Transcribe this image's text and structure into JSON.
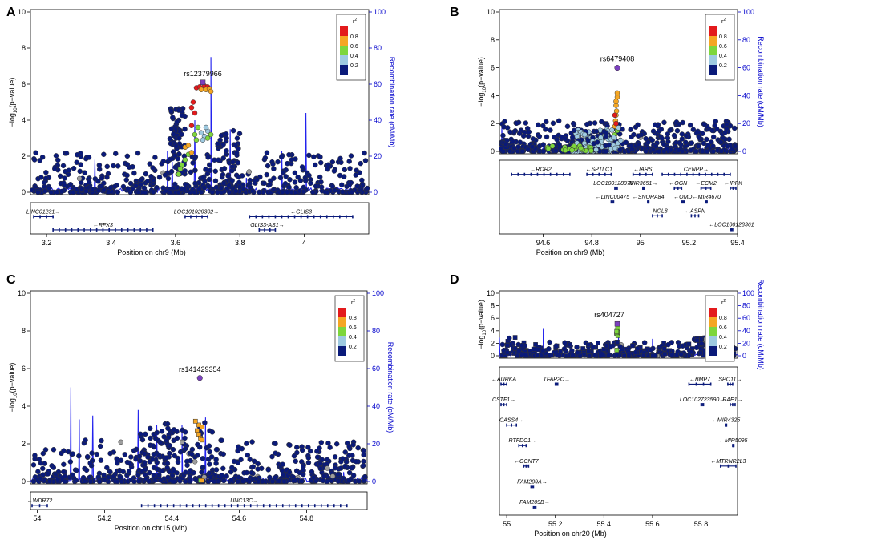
{
  "colors": {
    "r2_0_2": "#0a1a7a",
    "r2_0_4": "#9ecae1",
    "r2_0_6": "#7dd63c",
    "r2_0_8": "#f5a623",
    "r2_1_0": "#e31a1c",
    "lead": "#7b3fbf",
    "missing": "#9e9e9e",
    "recomb": "#2222ee"
  },
  "legend": {
    "title": "r",
    "superscript": "2",
    "ticks": [
      "0.8",
      "0.6",
      "0.4",
      "0.2"
    ]
  },
  "chart_data": [
    {
      "type": "scatter",
      "panel": "A",
      "lead_snp": "rs12379966",
      "lead_pos": 3.685,
      "lead_logp": 6.1,
      "xlabel": "Position on chr9 (Mb)",
      "ylabel_left": "-log10(p-value)",
      "ylabel_right": "Recombination rate (cM/Mb)",
      "xlim": [
        3.15,
        4.2
      ],
      "ylim": [
        0,
        10
      ],
      "ylim_right": [
        0,
        100
      ],
      "x_ticks": [
        "3.2",
        "3.4",
        "3.6",
        "3.8",
        "4"
      ],
      "x_tick_values": [
        3.2,
        3.4,
        3.6,
        3.8,
        4.0
      ],
      "y_ticks": [
        "0",
        "2",
        "4",
        "6",
        "8",
        "10"
      ],
      "y_right_ticks": [
        "0",
        "20",
        "40",
        "60",
        "80",
        "100"
      ],
      "genes": [
        {
          "name": "LINC01231",
          "start": 3.16,
          "end": 3.22,
          "strand": "+",
          "row": 0
        },
        {
          "name": "RFX3",
          "start": 3.22,
          "end": 3.53,
          "strand": "-",
          "row": 1
        },
        {
          "name": "LOC101929302",
          "start": 3.63,
          "end": 3.7,
          "strand": "+",
          "row": 0
        },
        {
          "name": "GLIS3",
          "start": 3.83,
          "end": 4.15,
          "strand": "-",
          "row": 0
        },
        {
          "name": "GLIS3-AS1",
          "start": 3.86,
          "end": 3.91,
          "strand": "+",
          "row": 1
        }
      ]
    },
    {
      "type": "scatter",
      "panel": "B",
      "lead_snp": "rs6479408",
      "lead_pos": 94.905,
      "lead_logp": 6.0,
      "xlabel": "Position on chr9 (Mb)",
      "ylabel_left": "-log10(p-value)",
      "ylabel_right": "Recombination rate (cM/Mb)",
      "xlim": [
        94.42,
        95.4
      ],
      "ylim": [
        0,
        10
      ],
      "ylim_right": [
        0,
        100
      ],
      "x_ticks": [
        "94.6",
        "94.8",
        "95",
        "95.2",
        "95.4"
      ],
      "x_tick_values": [
        94.6,
        94.8,
        95.0,
        95.2,
        95.4
      ],
      "y_ticks": [
        "0",
        "2",
        "4",
        "6",
        "8",
        "10"
      ],
      "y_right_ticks": [
        "0",
        "20",
        "40",
        "60",
        "80",
        "100"
      ],
      "genes": [
        {
          "name": "ROR2",
          "start": 94.47,
          "end": 94.71,
          "strand": "-",
          "row": 0
        },
        {
          "name": "SPTLC1",
          "start": 94.78,
          "end": 94.88,
          "strand": "-",
          "row": 0
        },
        {
          "name": "IARS",
          "start": 94.97,
          "end": 95.05,
          "strand": "-",
          "row": 0
        },
        {
          "name": "CENPP",
          "start": 95.09,
          "end": 95.37,
          "strand": "+",
          "row": 0
        },
        {
          "name": "LOC100128076",
          "start": 94.895,
          "end": 94.905,
          "strand": "+",
          "row": 1
        },
        {
          "name": "MIR3651",
          "start": 95.01,
          "end": 95.015,
          "strand": "+",
          "row": 1
        },
        {
          "name": "OGN",
          "start": 95.14,
          "end": 95.17,
          "strand": "-",
          "row": 1
        },
        {
          "name": "ECM2",
          "start": 95.25,
          "end": 95.29,
          "strand": "-",
          "row": 1
        },
        {
          "name": "IPPK",
          "start": 95.37,
          "end": 95.4,
          "strand": "-",
          "row": 1
        },
        {
          "name": "LINC00475",
          "start": 94.88,
          "end": 94.89,
          "strand": "-",
          "row": 2
        },
        {
          "name": "SNORA84",
          "start": 95.03,
          "end": 95.035,
          "strand": "-",
          "row": 2
        },
        {
          "name": "OMD",
          "start": 95.17,
          "end": 95.18,
          "strand": "-",
          "row": 2
        },
        {
          "name": "MIR4670",
          "start": 95.27,
          "end": 95.275,
          "strand": "-",
          "row": 2
        },
        {
          "name": "NOL8",
          "start": 95.05,
          "end": 95.09,
          "strand": "-",
          "row": 3
        },
        {
          "name": "ASPN",
          "start": 95.21,
          "end": 95.24,
          "strand": "-",
          "row": 3
        },
        {
          "name": "LOC100128361",
          "start": 95.37,
          "end": 95.38,
          "strand": "-",
          "row": 4
        }
      ]
    },
    {
      "type": "scatter",
      "panel": "C",
      "lead_snp": "rs141429354",
      "lead_pos": 54.483,
      "lead_logp": 5.5,
      "xlabel": "Position on chr15 (Mb)",
      "ylabel_left": "-log10(p-value)",
      "ylabel_right": "Recombination rate (cM/Mb)",
      "xlim": [
        53.98,
        54.98
      ],
      "ylim": [
        0,
        10
      ],
      "ylim_right": [
        0,
        100
      ],
      "x_ticks": [
        "54",
        "54.2",
        "54.4",
        "54.6",
        "54.8"
      ],
      "x_tick_values": [
        54.0,
        54.2,
        54.4,
        54.6,
        54.8
      ],
      "y_ticks": [
        "0",
        "2",
        "4",
        "6",
        "8",
        "10"
      ],
      "y_right_ticks": [
        "0",
        "20",
        "40",
        "60",
        "80",
        "100"
      ],
      "genes": [
        {
          "name": "WDR72",
          "start": 53.98,
          "end": 54.03,
          "strand": "-",
          "row": 0
        },
        {
          "name": "UNC13C",
          "start": 54.31,
          "end": 54.92,
          "strand": "+",
          "row": 0
        }
      ]
    },
    {
      "type": "scatter",
      "panel": "D",
      "lead_snp": "rs404727",
      "lead_pos": 55.455,
      "lead_logp": 5.1,
      "xlabel": "Position on chr20 (Mb)",
      "ylabel_left": "-log10(p-value)",
      "ylabel_right": "Recombination rate (cM/Mb)",
      "xlim": [
        54.97,
        55.95
      ],
      "ylim": [
        0,
        10
      ],
      "ylim_right": [
        0,
        100
      ],
      "x_ticks": [
        "55",
        "55.2",
        "55.4",
        "55.6",
        "55.8"
      ],
      "x_tick_values": [
        55.0,
        55.2,
        55.4,
        55.6,
        55.8
      ],
      "y_ticks": [
        "0",
        "2",
        "4",
        "6",
        "8",
        "10"
      ],
      "y_right_ticks": [
        "0",
        "20",
        "40",
        "60",
        "80",
        "100"
      ],
      "genes": [
        {
          "name": "AURKA",
          "start": 54.97,
          "end": 55.0,
          "strand": "-",
          "row": 0
        },
        {
          "name": "TFAP2C",
          "start": 55.2,
          "end": 55.21,
          "strand": "+",
          "row": 0
        },
        {
          "name": "BMP7",
          "start": 55.75,
          "end": 55.84,
          "strand": "-",
          "row": 0
        },
        {
          "name": "SPO11",
          "start": 55.91,
          "end": 55.93,
          "strand": "+",
          "row": 0
        },
        {
          "name": "CSTF1",
          "start": 54.97,
          "end": 55.0,
          "strand": "+",
          "row": 1
        },
        {
          "name": "LOC102723590",
          "start": 55.8,
          "end": 55.81,
          "strand": "+",
          "row": 1
        },
        {
          "name": "RAE1",
          "start": 55.92,
          "end": 55.94,
          "strand": "+",
          "row": 1
        },
        {
          "name": "CASS4",
          "start": 55.0,
          "end": 55.04,
          "strand": "+",
          "row": 2
        },
        {
          "name": "MIR4325",
          "start": 55.9,
          "end": 55.905,
          "strand": "-",
          "row": 2
        },
        {
          "name": "RTFDC1",
          "start": 55.05,
          "end": 55.08,
          "strand": "+",
          "row": 3
        },
        {
          "name": "MIR5095",
          "start": 55.93,
          "end": 55.935,
          "strand": "-",
          "row": 3
        },
        {
          "name": "GCNT7",
          "start": 55.07,
          "end": 55.09,
          "strand": "-",
          "row": 4
        },
        {
          "name": "MTRNR2L3",
          "start": 55.88,
          "end": 55.95,
          "strand": "-",
          "row": 4
        },
        {
          "name": "FAM209A",
          "start": 55.1,
          "end": 55.11,
          "strand": "+",
          "row": 5
        },
        {
          "name": "FAM209B",
          "start": 55.11,
          "end": 55.12,
          "strand": "+",
          "row": 6
        }
      ]
    }
  ]
}
